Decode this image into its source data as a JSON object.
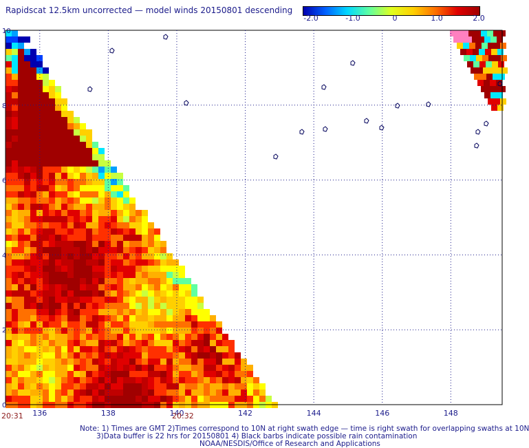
{
  "title": "Rapidscat 12.5km uncorrected — model winds 20150801 descending",
  "colorbar": {
    "ticks": [
      "-2.0",
      "-1.0",
      "0",
      "1.0",
      "2.0"
    ],
    "range": [
      -2.0,
      2.0
    ],
    "colors": [
      "#0000b0",
      "#0060ff",
      "#00d8ff",
      "#60ffa0",
      "#e0ff20",
      "#ffd000",
      "#ff7000",
      "#e00000",
      "#a00000"
    ]
  },
  "map": {
    "lat_labels": [
      "10",
      "8",
      "6",
      "4",
      "2",
      "0"
    ],
    "lon_labels": [
      "136",
      "138",
      "140",
      "142",
      "144",
      "146",
      "148"
    ],
    "lat_range": [
      0,
      10
    ],
    "lon_range": [
      135,
      149.5
    ],
    "grid": "dotted"
  },
  "times": {
    "left": "20:31",
    "mid": "20:32"
  },
  "notes": {
    "line1": "Note: 1) Times are GMT 2)Times correspond to 10N at right swath edge — time is right swath for overlapping swaths at 10N",
    "line2": "3)Data buffer is 22 hrs for 20150801 4) Black barbs indicate possible rain contamination",
    "line3": "NOAA/NESDIS/Office of Research and Applications"
  }
}
